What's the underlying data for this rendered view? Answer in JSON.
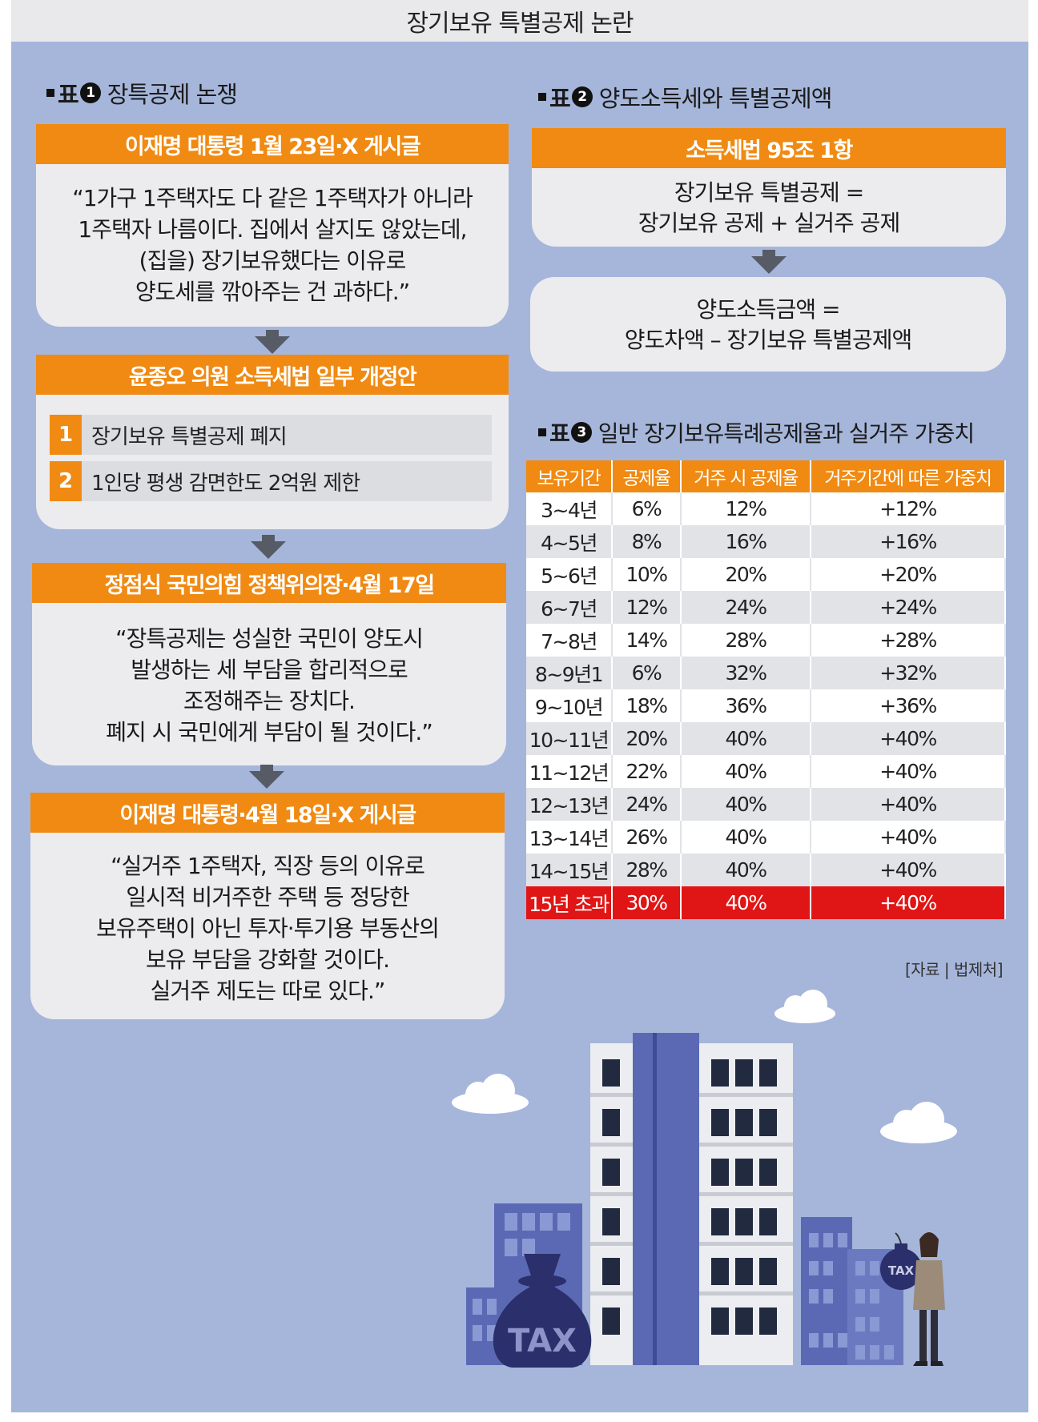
{
  "header": {
    "title": "장기보유 특별공제 논란"
  },
  "table1": {
    "prefix": "표",
    "num": "1",
    "title": "장특공제 논쟁",
    "block1": {
      "label": "이재명 대통령 1월 23일·X 게시글",
      "quote": "“1가구 1주택자도 다 같은 1주택자가 아니라\n1주택자 나름이다. 집에서 살지도 않았는데,\n(집을) 장기보유했다는 이유로\n양도세를 깎아주는 건 과하다.”"
    },
    "block2": {
      "label": "윤종오 의원 소득세법 일부 개정안",
      "items": [
        {
          "num": "1",
          "text": "장기보유 특별공제 폐지"
        },
        {
          "num": "2",
          "text": "1인당 평생 감면한도 2억원 제한"
        }
      ]
    },
    "block3": {
      "label": "정점식 국민의힘 정책위의장·4월 17일",
      "quote": "“장특공제는 성실한 국민이 양도시\n발생하는 세 부담을 합리적으로\n조정해주는 장치다.\n폐지 시 국민에게 부담이 될 것이다.”"
    },
    "block4": {
      "label": "이재명 대통령·4월 18일·X 게시글",
      "quote": "“실거주 1주택자, 직장 등의 이유로\n일시적 비거주한 주택 등 정당한\n보유주택이 아닌 투자·투기용 부동산의\n보유 부담을 강화할 것이다.\n실거주 제도는 따로 있다.”"
    }
  },
  "table2": {
    "prefix": "표",
    "num": "2",
    "title": "양도소득세와 특별공제액",
    "label": "소득세법 95조 1항",
    "formula1": "장기보유 특별공제 =\n장기보유 공제 + 실거주 공제",
    "formula2": "양도소득금액 =\n양도차액 – 장기보유 특별공제액"
  },
  "table3": {
    "prefix": "표",
    "num": "3",
    "title": "일반 장기보유특례공제율과 실거주 가중치",
    "headers": [
      "보유기간",
      "공제율",
      "거주 시 공제율",
      "거주기간에 따른 가중치"
    ],
    "rows": [
      [
        "3~4년",
        "6%",
        "12%",
        "+12%"
      ],
      [
        "4~5년",
        "8%",
        "16%",
        "+16%"
      ],
      [
        "5~6년",
        "10%",
        "20%",
        "+20%"
      ],
      [
        "6~7년",
        "12%",
        "24%",
        "+24%"
      ],
      [
        "7~8년",
        "14%",
        "28%",
        "+28%"
      ],
      [
        "8~9년1",
        "6%",
        "32%",
        "+32%"
      ],
      [
        "9~10년",
        "18%",
        "36%",
        "+36%"
      ],
      [
        "10~11년",
        "20%",
        "40%",
        "+40%"
      ],
      [
        "11~12년",
        "22%",
        "40%",
        "+40%"
      ],
      [
        "12~13년",
        "24%",
        "40%",
        "+40%"
      ],
      [
        "13~14년",
        "26%",
        "40%",
        "+40%"
      ],
      [
        "14~15년",
        "28%",
        "40%",
        "+40%"
      ],
      [
        "15년 초과",
        "30%",
        "40%",
        "+40%"
      ]
    ],
    "highlight_row": 12,
    "source": "[자료 | 법제처]"
  },
  "illustration": {
    "bag_text": "TAX",
    "bomb_text": "TAX"
  },
  "colors": {
    "accent": "#f08a12",
    "highlight": "#e01515",
    "background": "#a6b6da",
    "card": "#ececef"
  }
}
